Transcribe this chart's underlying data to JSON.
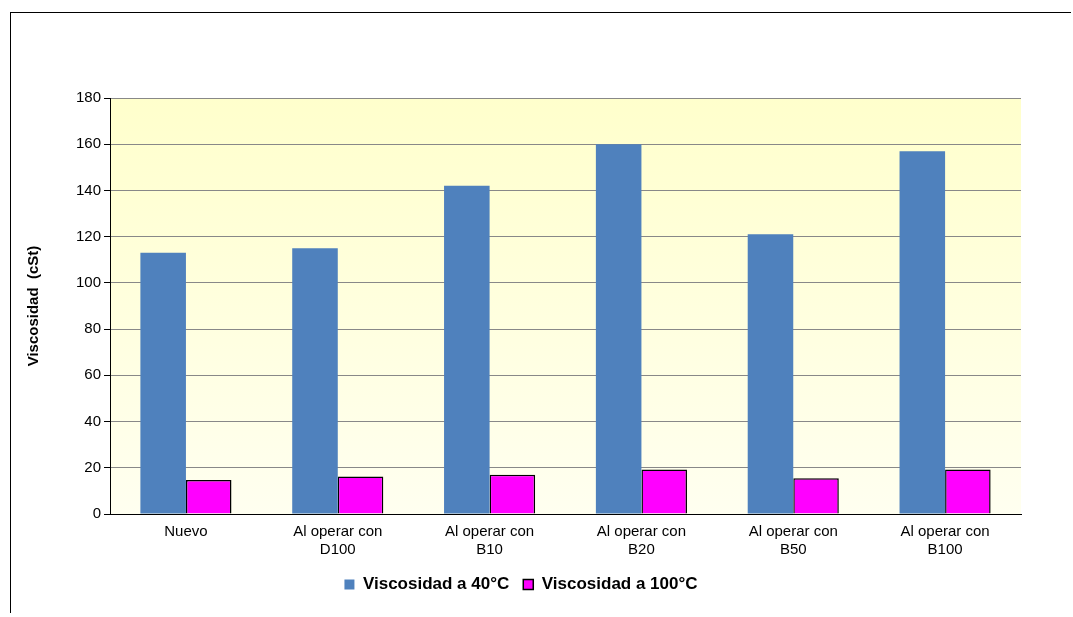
{
  "chart_data": {
    "type": "bar",
    "ylabel": "Viscosidad  (cSt)",
    "categories": [
      "Nuevo",
      "Al operar con D100",
      "Al operar con B10",
      "Al operar con B20",
      "Al operar con B50",
      "Al operar con B100"
    ],
    "series": [
      {
        "name": "Viscosidad a 40°C",
        "color": "#4f81bd",
        "values": [
          113,
          115,
          142,
          160,
          121,
          157
        ]
      },
      {
        "name": "Viscosidad a 100°C",
        "color": "#ff00ff",
        "values": [
          14.7,
          16.2,
          17,
          19.3,
          15.5,
          19.3
        ]
      }
    ],
    "ylim": [
      0,
      180
    ],
    "yticks": [
      0,
      20,
      40,
      60,
      80,
      100,
      120,
      140,
      160,
      180
    ],
    "grid": "y",
    "legend": "bottom"
  }
}
